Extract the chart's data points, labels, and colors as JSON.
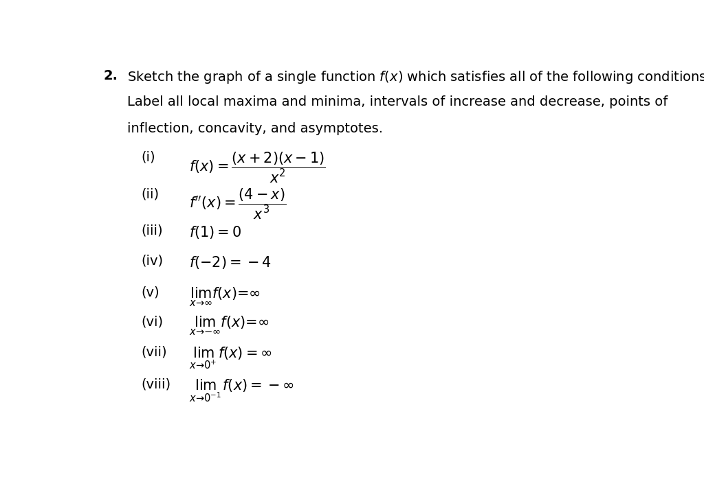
{
  "background_color": "#ffffff",
  "figsize": [
    10.24,
    6.95
  ],
  "dpi": 100,
  "number": "2.",
  "intro_line1_pre": "Sketch the graph of a single function ",
  "intro_line1_math": "$f(x)$",
  "intro_line1_post": " which satisfies all of the following conditions.",
  "intro_line2": "Label all local maxima and minima, intervals of increase and decrease, points of",
  "intro_line3": "inflection, concavity, and asymptotes.",
  "items": [
    {
      "label": "(i)",
      "math": "$f(x) = \\dfrac{(x + 2)(x - 1)}{x^2}$",
      "is_fraction": true
    },
    {
      "label": "(ii)",
      "math": "$f''(x) = \\dfrac{(4 - x)}{x^3}$",
      "is_fraction": true
    },
    {
      "label": "(iii)",
      "math": "$f(1) = 0$",
      "is_fraction": false
    },
    {
      "label": "(iv)",
      "math": "$f(-2) = -4$",
      "is_fraction": false
    },
    {
      "label": "(v)",
      "math": "$\\lim_{x \\to \\infty} f(x) = \\infty$",
      "is_fraction": false
    },
    {
      "label": "(vi)",
      "math": "$\\lim_{x \\to -\\infty} f(x) = \\infty$",
      "is_fraction": false
    },
    {
      "label": "(vii)",
      "math": "$\\lim_{x \\to 0^+} f(x) = \\infty$",
      "is_fraction": false
    },
    {
      "label": "(viii)",
      "math": "$\\lim_{x \\to 0^{-1}} f(x) = -\\infty$",
      "is_fraction": false
    }
  ]
}
